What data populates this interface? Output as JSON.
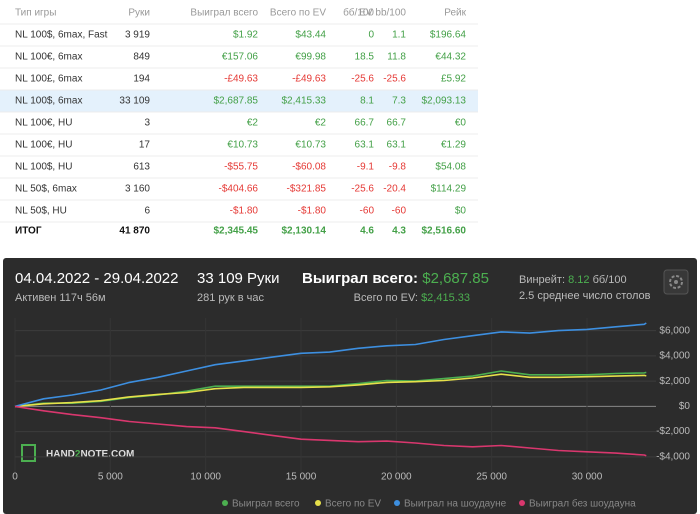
{
  "table": {
    "header": [
      "Тип игры",
      "Руки",
      "Выиграл всего",
      "Всего по EV",
      "бб/100",
      "EV bb/100",
      "Рейк"
    ],
    "highlight_row": 3,
    "rows": [
      [
        "NL 100$, 6max, Fast",
        "3 919",
        "$1.92",
        "$43.44",
        "0",
        "1.1",
        "$196.64"
      ],
      [
        "NL 100€, 6max",
        "849",
        "€157.06",
        "€99.98",
        "18.5",
        "11.8",
        "€44.32"
      ],
      [
        "NL 100£, 6max",
        "194",
        "-£49.63",
        "-£49.63",
        "-25.6",
        "-25.6",
        "£5.92"
      ],
      [
        "NL 100$, 6max",
        "33 109",
        "$2,687.85",
        "$2,415.33",
        "8.1",
        "7.3",
        "$2,093.13"
      ],
      [
        "NL 100€, HU",
        "3",
        "€2",
        "€2",
        "66.7",
        "66.7",
        "€0"
      ],
      [
        "NL 100€, HU",
        "17",
        "€10.73",
        "€10.73",
        "63.1",
        "63.1",
        "€1.29"
      ],
      [
        "NL 100$, HU",
        "613",
        "-$55.75",
        "-$60.08",
        "-9.1",
        "-9.8",
        "$54.08"
      ],
      [
        "NL 50$, 6max",
        "3 160",
        "-$404.66",
        "-$321.85",
        "-25.6",
        "-20.4",
        "$114.29"
      ],
      [
        "NL 50$, HU",
        "6",
        "-$1.80",
        "-$1.80",
        "-60",
        "-60",
        "$0"
      ]
    ],
    "total": [
      "ИТОГ",
      "41 870",
      "$2,345.45",
      "$2,130.14",
      "4.6",
      "4.3",
      "$2,516.60"
    ]
  },
  "panel": {
    "dates": "04.04.2022 - 29.04.2022",
    "active": "Активен 117ч 56м",
    "hands": "33 109 Руки",
    "per_hour": "281 рук в час",
    "won_label": "Выиграл всего:",
    "won_value": "$2,687.85",
    "ev_label": "Всего по EV:",
    "ev_value": "$2,415.33",
    "winrate_label": "Винрейт:",
    "winrate_value": "8.12",
    "winrate_unit": "бб/100",
    "tables": "2.5 среднее число столов",
    "watermark": [
      "HAND",
      "2",
      "NOTE.COM"
    ]
  },
  "chart_data": {
    "type": "line",
    "x": [
      0,
      1500,
      3000,
      4500,
      6000,
      7500,
      9000,
      10500,
      12000,
      13500,
      15000,
      16500,
      18000,
      19500,
      21000,
      22500,
      24000,
      25500,
      27000,
      28500,
      30000,
      31500,
      33000,
      33109
    ],
    "xlim": [
      0,
      33200
    ],
    "xticks": [
      0,
      {
        "value": 5000,
        "label": "5 000"
      },
      {
        "value": 10000,
        "label": "10 000"
      },
      {
        "value": 15000,
        "label": "15 000"
      },
      {
        "value": 20000,
        "label": "20 000"
      },
      {
        "value": 25000,
        "label": "25 000"
      },
      {
        "value": 30000,
        "label": "30 000"
      }
    ],
    "ylim": [
      -5200,
      7000
    ],
    "yticks": [
      {
        "value": -4000,
        "label": "-$4,000"
      },
      {
        "value": -2000,
        "label": "-$2,000"
      },
      {
        "value": 0,
        "label": "$0"
      },
      {
        "value": 2000,
        "label": "$2,000"
      },
      {
        "value": 4000,
        "label": "$4,000"
      },
      {
        "value": 6000,
        "label": "$6,000"
      }
    ],
    "grid": true,
    "series": [
      {
        "name": "Выиграл всего",
        "color": "#4caf50",
        "values": [
          0,
          250,
          250,
          400,
          700,
          900,
          1200,
          1600,
          1600,
          1600,
          1600,
          1600,
          1800,
          2050,
          2000,
          2200,
          2400,
          2800,
          2500,
          2500,
          2500,
          2600,
          2650,
          2688
        ]
      },
      {
        "name": "Всего по EV",
        "color": "#e6e04a",
        "values": [
          0,
          200,
          300,
          450,
          750,
          950,
          1100,
          1400,
          1500,
          1500,
          1500,
          1550,
          1700,
          1900,
          1950,
          2050,
          2250,
          2550,
          2300,
          2300,
          2350,
          2400,
          2450,
          2415
        ]
      },
      {
        "name": "Выиграл на шоудауне",
        "color": "#3d8fe0",
        "values": [
          0,
          600,
          900,
          1300,
          1900,
          2300,
          2800,
          3300,
          3600,
          3900,
          4200,
          4300,
          4600,
          4800,
          4900,
          5300,
          5600,
          5900,
          5800,
          6000,
          6100,
          6300,
          6500,
          6600
        ]
      },
      {
        "name": "Выиграл без шоудауна",
        "color": "#d9376e",
        "values": [
          0,
          -350,
          -650,
          -900,
          -1200,
          -1400,
          -1600,
          -1700,
          -2000,
          -2300,
          -2600,
          -2700,
          -2800,
          -2750,
          -2900,
          -3100,
          -3200,
          -3100,
          -3300,
          -3500,
          -3600,
          -3700,
          -3850,
          -3910
        ]
      }
    ]
  }
}
